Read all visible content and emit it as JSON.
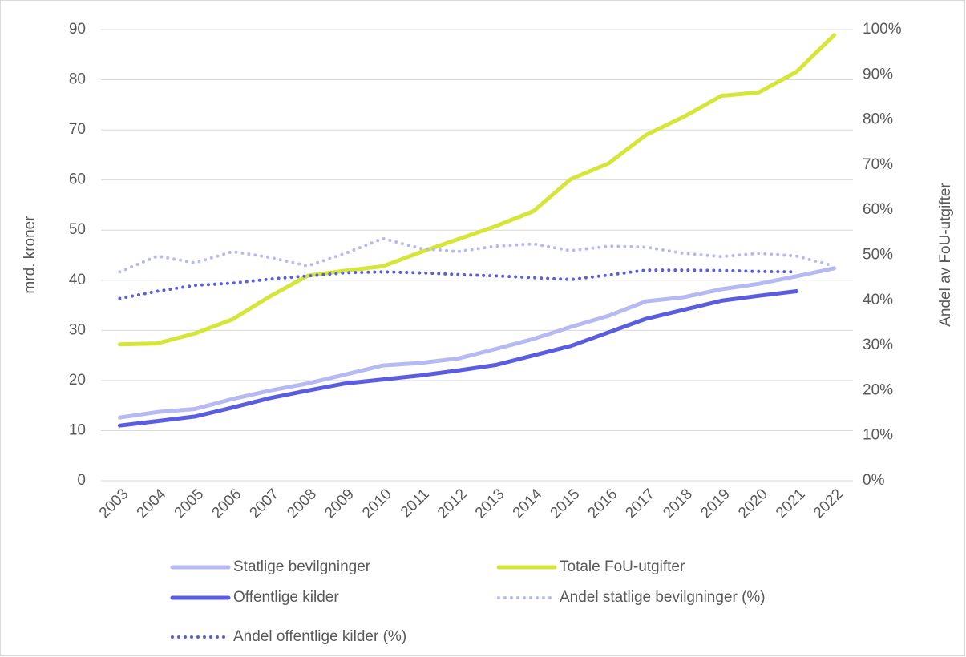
{
  "chart_data": {
    "type": "line",
    "ylabel": "mrd. kroner",
    "y2label": "Andel av FoU-utgifter",
    "categories": [
      "2003",
      "2004",
      "2005",
      "2006",
      "2007",
      "2008",
      "2009",
      "2010",
      "2011",
      "2012",
      "2013",
      "2014",
      "2015",
      "2016",
      "2017",
      "2018",
      "2019",
      "2020",
      "2021",
      "2022"
    ],
    "ylim": [
      0,
      90
    ],
    "yticks": [
      0,
      10,
      20,
      30,
      40,
      50,
      60,
      70,
      80,
      90
    ],
    "y2lim": [
      0,
      100
    ],
    "y2ticks": [
      {
        "value": 0,
        "label": "0%"
      },
      {
        "value": 10,
        "label": "10%"
      },
      {
        "value": 20,
        "label": "20%"
      },
      {
        "value": 30,
        "label": "30%"
      },
      {
        "value": 40,
        "label": "40%"
      },
      {
        "value": 50,
        "label": "50%"
      },
      {
        "value": 60,
        "label": "60%"
      },
      {
        "value": 70,
        "label": "70%"
      },
      {
        "value": 80,
        "label": "80%"
      },
      {
        "value": 90,
        "label": "90%"
      },
      {
        "value": 100,
        "label": "100%"
      }
    ],
    "grid": true,
    "legend": "bottom",
    "series": [
      {
        "name": "Statlige bevilgninger",
        "color": "#b7baf2",
        "style": "solid",
        "values": [
          12.6,
          13.7,
          14.3,
          16.3,
          18.0,
          19.4,
          21.2,
          23.0,
          23.5,
          24.4,
          26.3,
          28.3,
          30.7,
          32.9,
          35.8,
          36.6,
          38.2,
          39.3,
          40.8,
          42.4
        ]
      },
      {
        "name": "Totale FoU-utgifter",
        "color": "#d5e639",
        "style": "solid",
        "values": [
          27.2,
          27.4,
          29.4,
          32.2,
          36.8,
          40.9,
          41.9,
          42.8,
          45.6,
          48.2,
          50.8,
          53.8,
          60.2,
          63.3,
          69.0,
          72.6,
          76.8,
          77.5,
          81.6,
          88.9
        ]
      },
      {
        "name": "Offentlige kilder",
        "color": "#5a5de0",
        "style": "solid",
        "values": [
          11.0,
          11.9,
          12.8,
          14.6,
          16.5,
          18.0,
          19.4,
          20.2,
          21.0,
          22.0,
          23.1,
          25.0,
          26.9,
          29.6,
          32.3,
          34.1,
          35.9,
          36.9,
          37.8,
          null
        ]
      },
      {
        "name": "Andel statlige bevilgninger (%)",
        "color": "#b7baf2",
        "style": "dotted",
        "axis": "y2",
        "values": [
          46.3,
          49.8,
          48.3,
          50.8,
          49.5,
          47.6,
          50.4,
          53.7,
          51.5,
          50.8,
          52.0,
          52.5,
          51.0,
          52.0,
          51.8,
          50.4,
          49.7,
          50.4,
          49.8,
          47.6
        ]
      },
      {
        "name": "Andel offentlige kilder (%)",
        "color": "#5a5de0",
        "style": "dotted",
        "axis": "y2",
        "values": [
          40.4,
          42.0,
          43.3,
          43.8,
          44.7,
          45.4,
          46.1,
          46.3,
          46.1,
          45.7,
          45.4,
          45.0,
          44.6,
          45.6,
          46.7,
          46.7,
          46.6,
          46.4,
          46.3,
          null
        ]
      }
    ]
  }
}
